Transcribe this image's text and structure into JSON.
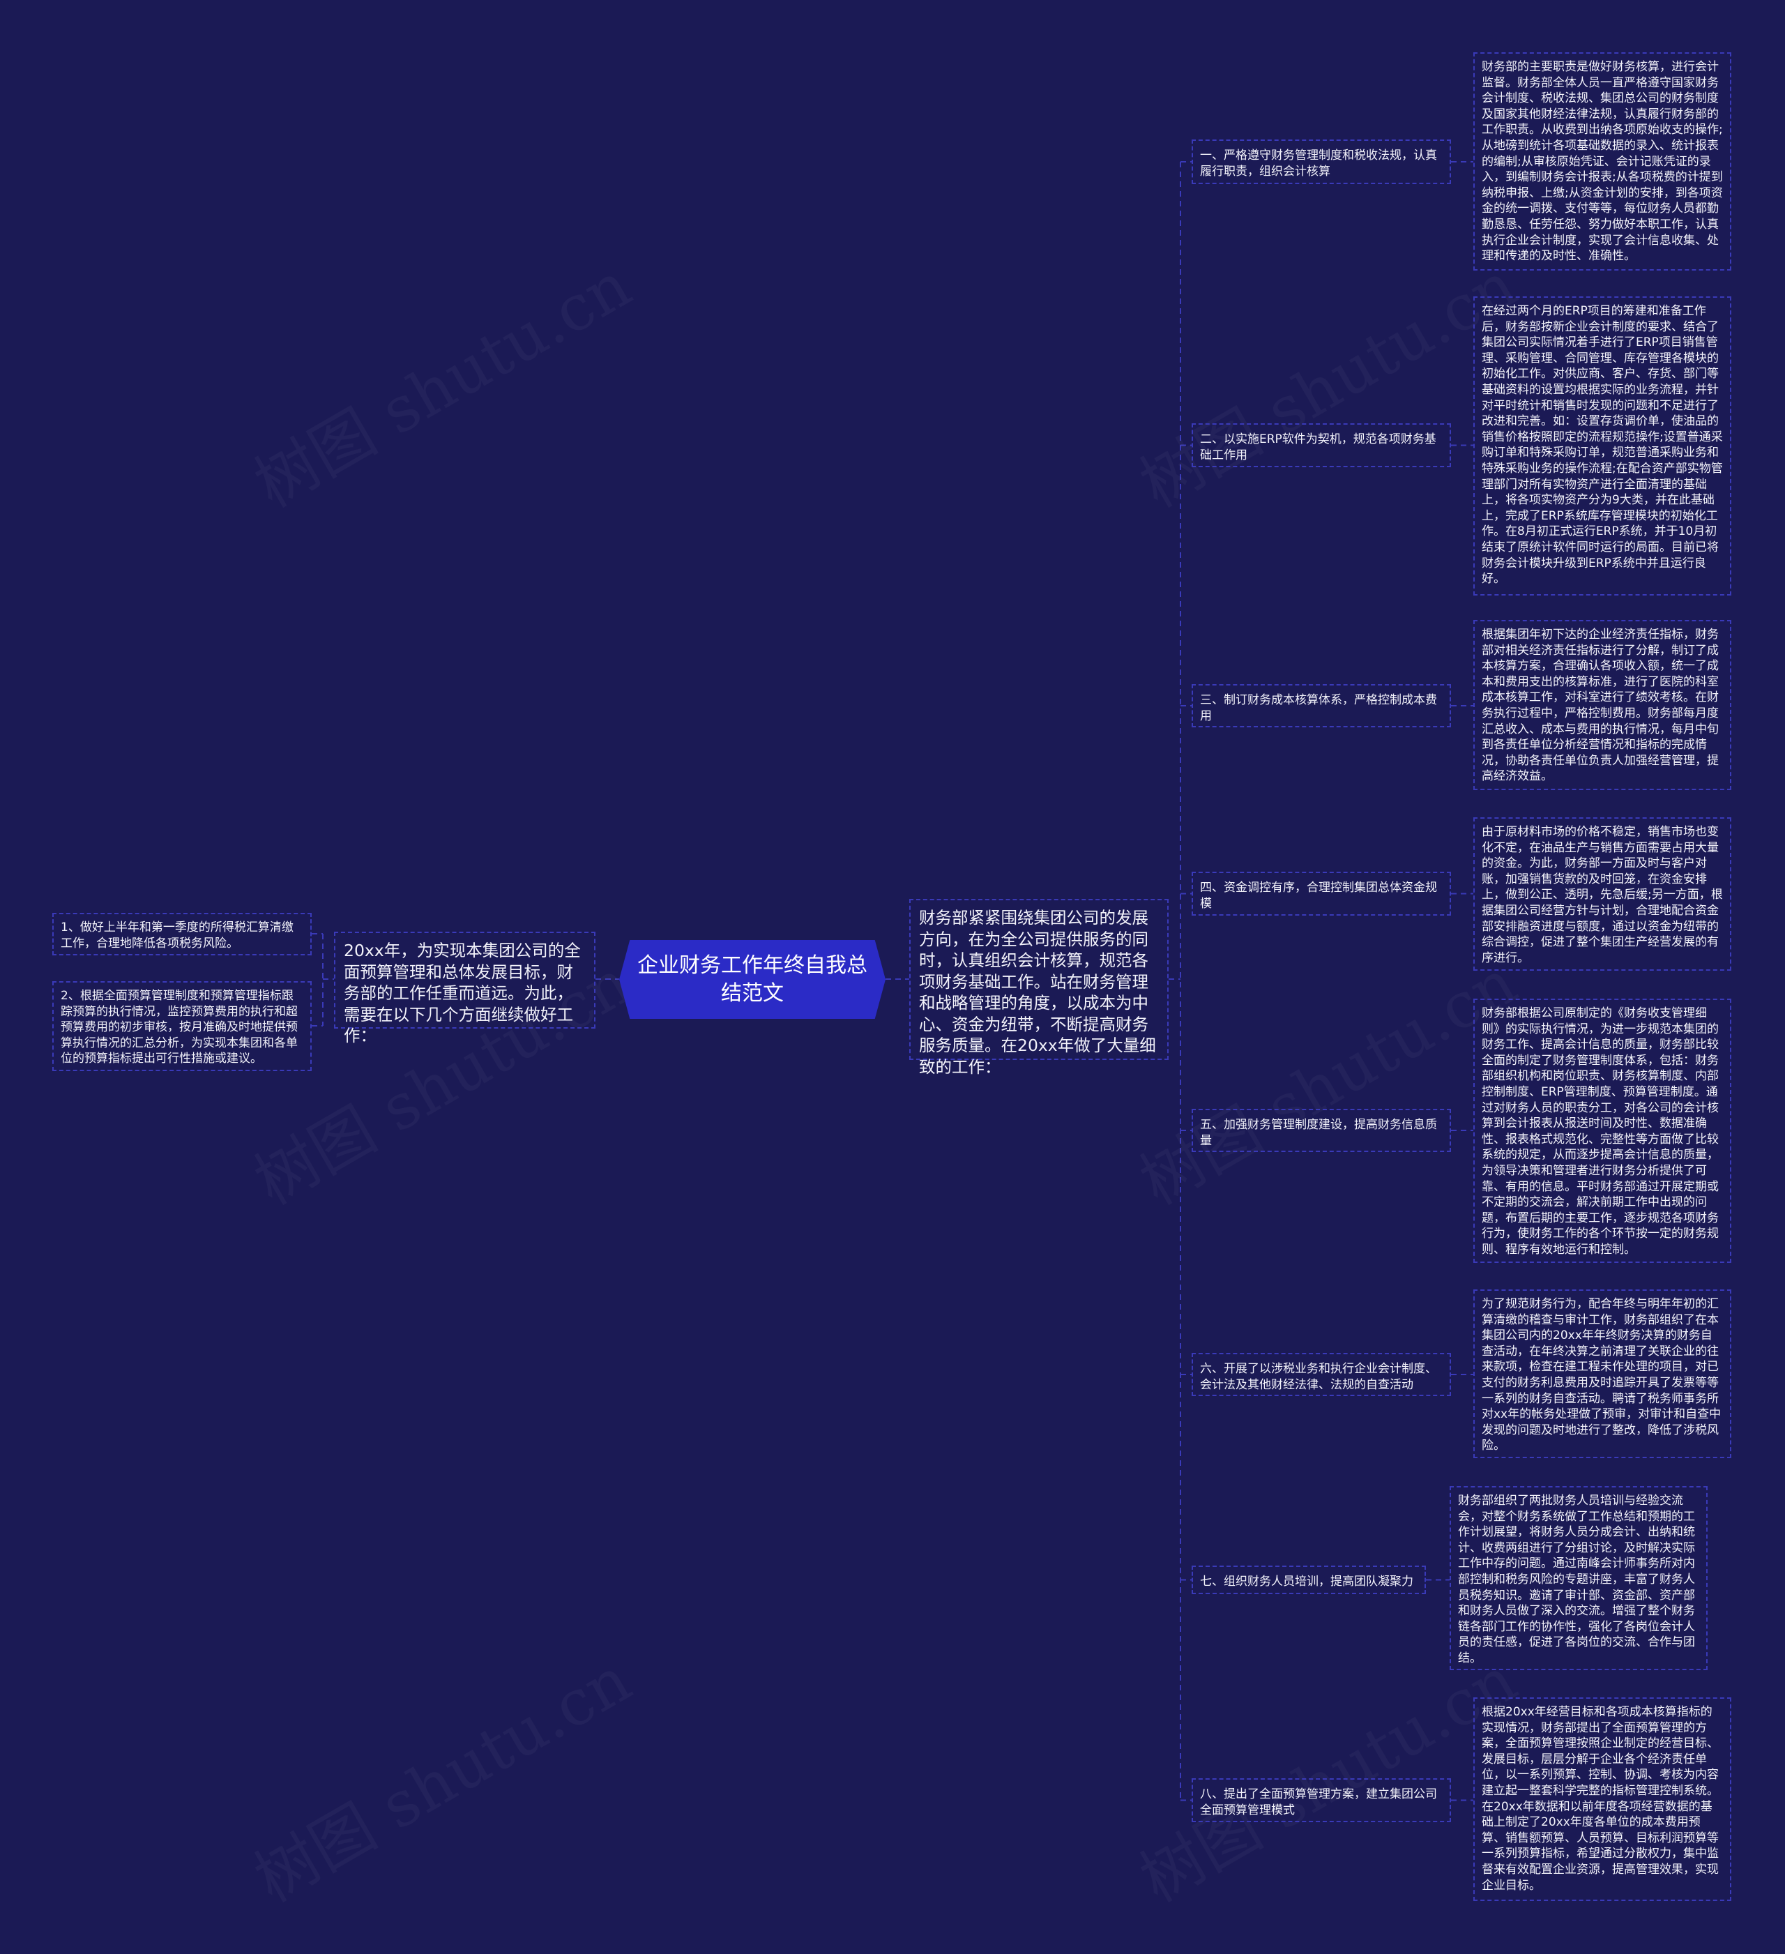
{
  "colors": {
    "background": "#1b1a55",
    "center_node": "#2b2bc6",
    "border": "#3a3ab8"
  },
  "watermark": "树图 shutu.cn",
  "center": {
    "title": "企业财务工作年终自我总结范文"
  },
  "left": {
    "intro": "20xx年，为实现本集团公司的全面预算管理和总体发展目标，财务部的工作任重而道远。为此，需要在以下几个方面继续做好工作：",
    "items": [
      "1、做好上半年和第一季度的所得税汇算清缴工作，合理地降低各项税务风险。",
      "2、根据全面预算管理制度和预算管理指标跟踪预算的执行情况，监控预算费用的执行和超预算费用的初步审核，按月准确及时地提供预算执行情况的汇总分析，为实现本集团和各单位的预算指标提出可行性措施或建议。"
    ]
  },
  "right": {
    "intro": "财务部紧紧围绕集团公司的发展方向，在为全公司提供服务的同时，认真组织会计核算，规范各项财务基础工作。站在财务管理和战略管理的角度，以成本为中心、资金为纽带，不断提高财务服务质量。在20xx年做了大量细致的工作：",
    "branches": [
      {
        "label": "一、严格遵守财务管理制度和税收法规，认真履行职责，组织会计核算",
        "detail": "财务部的主要职责是做好财务核算，进行会计监督。财务部全体人员一直严格遵守国家财务会计制度、税收法规、集团总公司的财务制度及国家其他财经法律法规，认真履行财务部的工作职责。从收费到出纳各项原始收支的操作;从地磅到统计各项基础数据的录入、统计报表的编制;从审核原始凭证、会计记账凭证的录入，到编制财务会计报表;从各项税费的计提到纳税申报、上缴;从资金计划的安排，到各项资金的统一调拨、支付等等，每位财务人员都勤勤恳恳、任劳任怨、努力做好本职工作，认真执行企业会计制度，实现了会计信息收集、处理和传递的及时性、准确性。"
      },
      {
        "label": "二、以实施ERP软件为契机，规范各项财务基础工作用",
        "detail": "在经过两个月的ERP项目的筹建和准备工作后，财务部按新企业会计制度的要求、结合了集团公司实际情况着手进行了ERP项目销售管理、采购管理、合同管理、库存管理各模块的初始化工作。对供应商、客户、存货、部门等基础资料的设置均根据实际的业务流程，并针对平时统计和销售时发现的问题和不足进行了改进和完善。如：设置存货调价单，使油品的销售价格按照即定的流程规范操作;设置普通采购订单和特殊采购订单，规范普通采购业务和特殊采购业务的操作流程;在配合资产部实物管理部门对所有实物资产进行全面清理的基础上，将各项实物资产分为9大类，并在此基础上，完成了ERP系统库存管理模块的初始化工作。在8月初正式运行ERP系统，并于10月初结束了原统计软件同时运行的局面。目前已将财务会计模块升级到ERP系统中并且运行良好。"
      },
      {
        "label": "三、制订财务成本核算体系，严格控制成本费用",
        "detail": "根据集团年初下达的企业经济责任指标，财务部对相关经济责任指标进行了分解，制订了成本核算方案，合理确认各项收入额，统一了成本和费用支出的核算标准，进行了医院的科室成本核算工作，对科室进行了绩效考核。在财务执行过程中，严格控制费用。财务部每月度汇总收入、成本与费用的执行情况，每月中旬到各责任单位分析经营情况和指标的完成情况，协助各责任单位负责人加强经营管理，提高经济效益。"
      },
      {
        "label": "四、资金调控有序，合理控制集团总体资金规模",
        "detail": "由于原材料市场的价格不稳定，销售市场也变化不定，在油品生产与销售方面需要占用大量的资金。为此，财务部一方面及时与客户对账，加强销售货款的及时回笼，在资金安排上，做到公正、透明，先急后缓;另一方面，根据集团公司经营方针与计划，合理地配合资金部安排融资进度与额度，通过以资金为纽带的综合调控，促进了整个集团生产经营发展的有序进行。"
      },
      {
        "label": "五、加强财务管理制度建设，提高财务信息质量",
        "detail": "财务部根据公司原制定的《财务收支管理细则》的实际执行情况，为进一步规范本集团的财务工作、提高会计信息的质量，财务部比较全面的制定了财务管理制度体系，包括：财务部组织机构和岗位职责、财务核算制度、内部控制制度、ERP管理制度、预算管理制度。通过对财务人员的职责分工，对各公司的会计核算到会计报表从报送时间及时性、数据准确性、报表格式规范化、完整性等方面做了比较系统的规定，从而逐步提高会计信息的质量，为领导决策和管理者进行财务分析提供了可靠、有用的信息。平时财务部通过开展定期或不定期的交流会，解决前期工作中出现的问题，布置后期的主要工作，逐步规范各项财务行为，使财务工作的各个环节按一定的财务规则、程序有效地运行和控制。"
      },
      {
        "label": "六、开展了以涉税业务和执行企业会计制度、会计法及其他财经法律、法规的自查活动",
        "detail": "为了规范财务行为，配合年终与明年年初的汇算清缴的稽查与审计工作，财务部组织了在本集团公司内的20xx年年终财务决算的财务自查活动，在年终决算之前清理了关联企业的往来款项，检查在建工程未作处理的项目，对已支付的财务利息费用及时追踪开具了发票等等一系列的财务自查活动。聘请了税务师事务所对xx年的帐务处理做了预审，对审计和自查中发现的问题及时地进行了整改，降低了涉税风险。"
      },
      {
        "label": "七、组织财务人员培训，提高团队凝聚力",
        "detail": "财务部组织了两批财务人员培训与经验交流会，对整个财务系统做了工作总结和预期的工作计划展望，将财务人员分成会计、出纳和统计、收费两组进行了分组讨论，及时解决实际工作中存的问题。通过南峰会计师事务所对内部控制和税务风险的专题讲座，丰富了财务人员税务知识。邀请了审计部、资金部、资产部和财务人员做了深入的交流。增强了整个财务链各部门工作的协作性，强化了各岗位会计人员的责任感，促进了各岗位的交流、合作与团结。"
      },
      {
        "label": "八、提出了全面预算管理方案，建立集团公司全面预算管理模式",
        "detail": "根据20xx年经营目标和各项成本核算指标的实现情况，财务部提出了全面预算管理的方案，全面预算管理按照企业制定的经营目标、发展目标，层层分解于企业各个经济责任单位，以一系列预算、控制、协调、考核为内容建立起一整套科学完整的指标管理控制系统。在20xx年数据和以前年度各项经营数据的基础上制定了20xx年度各单位的成本费用预算、销售额预算、人员预算、目标利润预算等一系列预算指标，希望通过分散权力，集中监督来有效配置企业资源，提高管理效果，实现企业目标。"
      }
    ]
  }
}
